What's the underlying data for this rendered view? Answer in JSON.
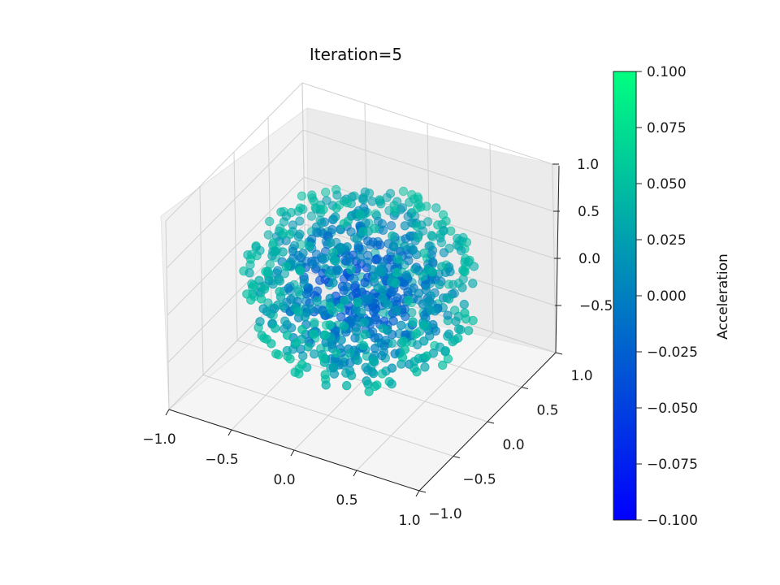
{
  "chart_data": {
    "type": "scatter",
    "projection": "3d",
    "title": "Iteration=5",
    "xlim": [
      -1.0,
      1.0
    ],
    "ylim": [
      -1.0,
      1.0
    ],
    "zlim": [
      -1.0,
      1.0
    ],
    "x_ticks": [
      "−1.0",
      "−0.5",
      "0.0",
      "0.5",
      "1.0"
    ],
    "y_ticks": [
      "−1.0",
      "−0.5",
      "0.0",
      "0.5",
      "1.0"
    ],
    "z_ticks": [
      "−0.5",
      "0.0",
      "0.5",
      "1.0"
    ],
    "grid": true,
    "colormap": "winter",
    "colormap_colors": [
      "#0000ff",
      "#00ff80"
    ],
    "colorbar": {
      "label": "Acceleration",
      "min": -0.1,
      "max": 0.1,
      "ticks": [
        "0.100",
        "0.075",
        "0.050",
        "0.025",
        "0.000",
        "−0.025",
        "−0.050",
        "−0.075",
        "−0.100"
      ]
    },
    "series": [
      {
        "distribution": "points inside unit sphere",
        "radius": 0.85,
        "point_count": 900,
        "value_range": [
          -0.05,
          0.05
        ]
      }
    ]
  }
}
